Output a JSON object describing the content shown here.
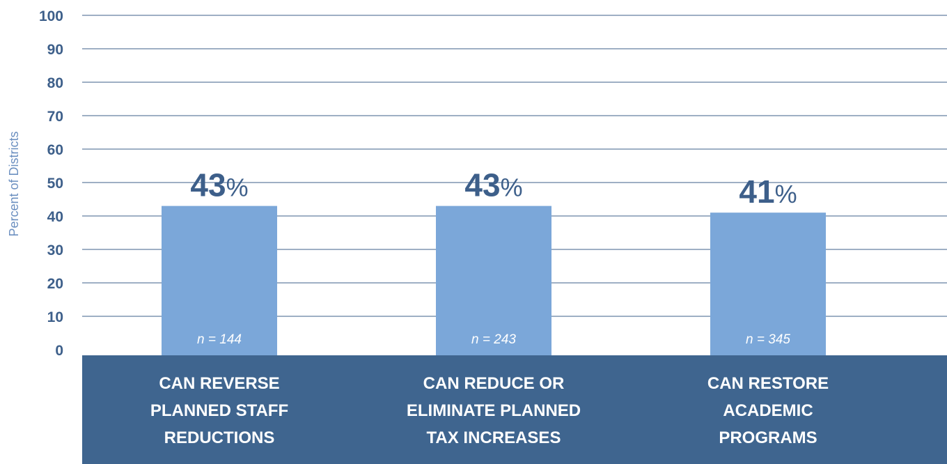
{
  "chart_data": {
    "type": "bar",
    "ylabel": "Percent of Districts",
    "ylim": [
      0,
      100
    ],
    "yticks": [
      0,
      10,
      20,
      30,
      40,
      50,
      60,
      70,
      80,
      90,
      100
    ],
    "grid": true,
    "categories": [
      [
        "CAN REVERSE",
        "PLANNED STAFF",
        "REDUCTIONS"
      ],
      [
        "CAN REDUCE OR",
        "ELIMINATE PLANNED",
        "TAX INCREASES"
      ],
      [
        "CAN RESTORE",
        "ACADEMIC",
        "PROGRAMS"
      ]
    ],
    "values": [
      43,
      43,
      41
    ],
    "value_labels": [
      "43",
      "43",
      "41"
    ],
    "value_suffix": "%",
    "n_labels": [
      "n = 144",
      "n = 243",
      "n = 345"
    ],
    "colors": {
      "bar": "#7ba7d9",
      "axis_band": "#3f658f",
      "grid": "#3d5f8a",
      "tick_text": "#3d5f8a",
      "ylabel_text": "#6b8fc0"
    }
  }
}
